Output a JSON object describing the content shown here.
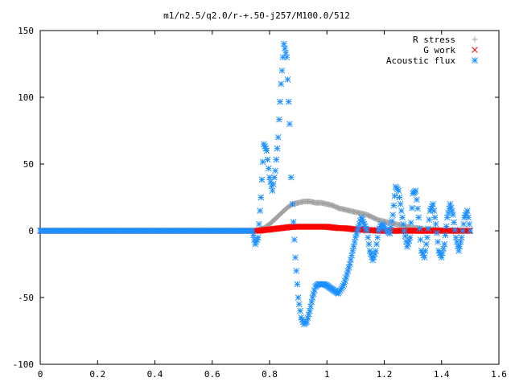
{
  "chart_data": {
    "type": "scatter",
    "title": "m1/n2.5/q2.0/r-+.50-j257/M100.0/512",
    "xlabel": "",
    "ylabel": "",
    "xlim": [
      0,
      1.6
    ],
    "ylim": [
      -100,
      150
    ],
    "x_ticks": [
      "0",
      "0.2",
      "0.4",
      "0.6",
      "0.8",
      "1",
      "1.2",
      "1.4",
      "1.6"
    ],
    "x_tick_values": [
      0,
      0.2,
      0.4,
      0.6,
      0.8,
      1.0,
      1.2,
      1.4,
      1.6
    ],
    "y_ticks": [
      "150",
      "100",
      "50",
      "0",
      "-50",
      "-100"
    ],
    "y_tick_values": [
      150,
      100,
      50,
      0,
      -50,
      -100
    ],
    "grid": false,
    "legend_position": "top-right",
    "series": [
      {
        "name": "R stress",
        "color": "#a0a0a0",
        "marker": "plus",
        "x": [
          0.0,
          0.1,
          0.2,
          0.3,
          0.4,
          0.5,
          0.6,
          0.7,
          0.74,
          0.76,
          0.78,
          0.8,
          0.82,
          0.84,
          0.86,
          0.88,
          0.9,
          0.92,
          0.94,
          0.96,
          0.98,
          1.0,
          1.02,
          1.04,
          1.06,
          1.08,
          1.1,
          1.12,
          1.14,
          1.16,
          1.18,
          1.2,
          1.22,
          1.24,
          1.26,
          1.28,
          1.3,
          1.32,
          1.34,
          1.36,
          1.38,
          1.4,
          1.42,
          1.44,
          1.46,
          1.48,
          1.5
        ],
        "y": [
          0,
          0,
          0,
          0,
          0,
          0,
          0,
          0,
          0,
          0.5,
          2,
          5,
          9,
          13,
          17,
          20,
          21,
          22,
          22,
          21,
          21,
          20,
          19,
          17,
          16,
          15,
          14,
          13,
          12,
          10,
          8,
          7,
          6,
          5,
          4,
          3,
          2,
          2,
          1,
          1,
          1,
          0.5,
          0.5,
          0,
          0,
          0,
          0
        ]
      },
      {
        "name": "G work",
        "color": "#ff0000",
        "marker": "x",
        "x": [
          0.0,
          0.1,
          0.2,
          0.3,
          0.4,
          0.5,
          0.6,
          0.7,
          0.74,
          0.76,
          0.78,
          0.8,
          0.82,
          0.84,
          0.86,
          0.88,
          0.9,
          0.92,
          0.94,
          0.96,
          0.98,
          1.0,
          1.02,
          1.04,
          1.06,
          1.08,
          1.1,
          1.12,
          1.14,
          1.16,
          1.18,
          1.2,
          1.22,
          1.24,
          1.26,
          1.28,
          1.3,
          1.32,
          1.34,
          1.36,
          1.38,
          1.4,
          1.42,
          1.44,
          1.46,
          1.48,
          1.5
        ],
        "y": [
          0,
          0,
          0,
          0,
          0,
          0,
          0,
          0,
          0,
          0,
          0.5,
          1,
          1.5,
          2,
          2.5,
          3,
          3,
          3,
          3,
          3,
          3,
          3,
          2.5,
          2,
          2,
          1.5,
          1,
          1,
          0.5,
          0.5,
          0,
          0,
          0,
          0,
          0,
          0,
          0,
          0,
          0,
          0,
          0,
          0,
          0,
          0,
          0,
          0,
          0
        ]
      },
      {
        "name": "Acoustic flux",
        "color": "#1e90ff",
        "marker": "star",
        "x": [
          0.0,
          0.1,
          0.2,
          0.3,
          0.4,
          0.5,
          0.6,
          0.7,
          0.74,
          0.75,
          0.76,
          0.77,
          0.78,
          0.79,
          0.8,
          0.81,
          0.82,
          0.83,
          0.84,
          0.85,
          0.86,
          0.87,
          0.875,
          0.88,
          0.89,
          0.9,
          0.91,
          0.92,
          0.93,
          0.94,
          0.95,
          0.96,
          0.97,
          0.98,
          0.99,
          1.0,
          1.02,
          1.04,
          1.06,
          1.08,
          1.1,
          1.12,
          1.14,
          1.15,
          1.16,
          1.17,
          1.18,
          1.19,
          1.2,
          1.21,
          1.22,
          1.23,
          1.24,
          1.25,
          1.26,
          1.27,
          1.28,
          1.29,
          1.3,
          1.31,
          1.32,
          1.33,
          1.34,
          1.35,
          1.36,
          1.37,
          1.38,
          1.39,
          1.4,
          1.41,
          1.42,
          1.43,
          1.44,
          1.45,
          1.46,
          1.47,
          1.48,
          1.49,
          1.5
        ],
        "y": [
          0,
          0,
          0,
          0,
          0,
          0,
          0,
          0,
          0,
          -10,
          -5,
          25,
          65,
          60,
          40,
          30,
          45,
          70,
          110,
          140,
          130,
          80,
          40,
          20,
          -20,
          -50,
          -65,
          -70,
          -68,
          -60,
          -50,
          -42,
          -40,
          -40,
          -40,
          -41,
          -44,
          -47,
          -40,
          -25,
          -5,
          10,
          0,
          -15,
          -22,
          -15,
          0,
          5,
          3,
          0,
          -2,
          12,
          33,
          30,
          15,
          0,
          -12,
          -5,
          28,
          30,
          10,
          -15,
          -20,
          -5,
          15,
          20,
          5,
          -15,
          -20,
          -10,
          10,
          20,
          12,
          -5,
          -15,
          -5,
          10,
          15,
          0
        ]
      }
    ]
  }
}
